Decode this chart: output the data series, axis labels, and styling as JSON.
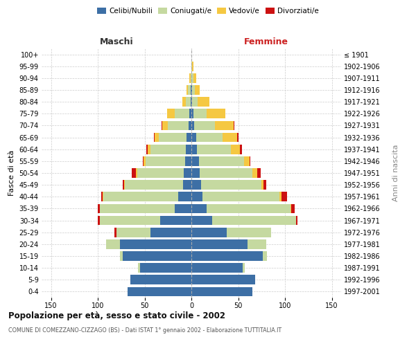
{
  "age_groups": [
    "0-4",
    "5-9",
    "10-14",
    "15-19",
    "20-24",
    "25-29",
    "30-34",
    "35-39",
    "40-44",
    "45-49",
    "50-54",
    "55-59",
    "60-64",
    "65-69",
    "70-74",
    "75-79",
    "80-84",
    "85-89",
    "90-94",
    "95-99",
    "100+"
  ],
  "birth_years": [
    "1997-2001",
    "1992-1996",
    "1987-1991",
    "1982-1986",
    "1977-1981",
    "1972-1976",
    "1967-1971",
    "1962-1966",
    "1957-1961",
    "1952-1956",
    "1947-1951",
    "1942-1946",
    "1937-1941",
    "1932-1936",
    "1927-1931",
    "1922-1926",
    "1917-1921",
    "1912-1916",
    "1907-1911",
    "1902-1906",
    "≤ 1901"
  ],
  "males": {
    "celibi": [
      68,
      65,
      55,
      73,
      76,
      44,
      33,
      18,
      14,
      9,
      8,
      7,
      6,
      5,
      3,
      2,
      1,
      1,
      0,
      0,
      0
    ],
    "coniugati": [
      0,
      0,
      2,
      3,
      15,
      36,
      65,
      80,
      80,
      62,
      50,
      42,
      38,
      30,
      22,
      16,
      5,
      3,
      1,
      0,
      0
    ],
    "vedovi": [
      0,
      0,
      0,
      0,
      0,
      0,
      0,
      0,
      1,
      1,
      1,
      2,
      3,
      4,
      6,
      8,
      4,
      1,
      1,
      0,
      0
    ],
    "divorziati": [
      0,
      0,
      0,
      0,
      0,
      2,
      2,
      2,
      1,
      1,
      5,
      1,
      1,
      1,
      1,
      0,
      0,
      0,
      0,
      0,
      0
    ]
  },
  "females": {
    "nubili": [
      65,
      68,
      55,
      76,
      60,
      38,
      22,
      16,
      12,
      10,
      9,
      8,
      6,
      5,
      3,
      2,
      1,
      1,
      0,
      0,
      0
    ],
    "coniugate": [
      0,
      0,
      2,
      5,
      20,
      47,
      90,
      90,
      82,
      65,
      56,
      48,
      36,
      28,
      22,
      14,
      6,
      3,
      2,
      1,
      0
    ],
    "vedove": [
      0,
      0,
      0,
      0,
      0,
      0,
      0,
      1,
      2,
      2,
      5,
      6,
      10,
      16,
      20,
      20,
      12,
      5,
      3,
      1,
      0
    ],
    "divorziate": [
      0,
      0,
      0,
      0,
      0,
      0,
      1,
      3,
      6,
      3,
      4,
      1,
      2,
      1,
      1,
      0,
      0,
      0,
      0,
      0,
      0
    ]
  },
  "colors": {
    "celibi": "#3d6fa5",
    "coniugati": "#c5d9a0",
    "vedovi": "#f5c842",
    "divorziati": "#cc1111"
  },
  "xlim": 160,
  "title": "Popolazione per età, sesso e stato civile - 2002",
  "subtitle": "COMUNE DI COMEZZANO-CIZZAGO (BS) - Dati ISTAT 1° gennaio 2002 - Elaborazione TUTTITALIA.IT",
  "ylabel_left": "Fasce di età",
  "ylabel_right": "Anni di nascita",
  "xlabel_left": "Maschi",
  "xlabel_right": "Femmine",
  "legend_labels": [
    "Celibi/Nubili",
    "Coniugati/e",
    "Vedovi/e",
    "Divorziati/e"
  ],
  "background_color": "#ffffff"
}
